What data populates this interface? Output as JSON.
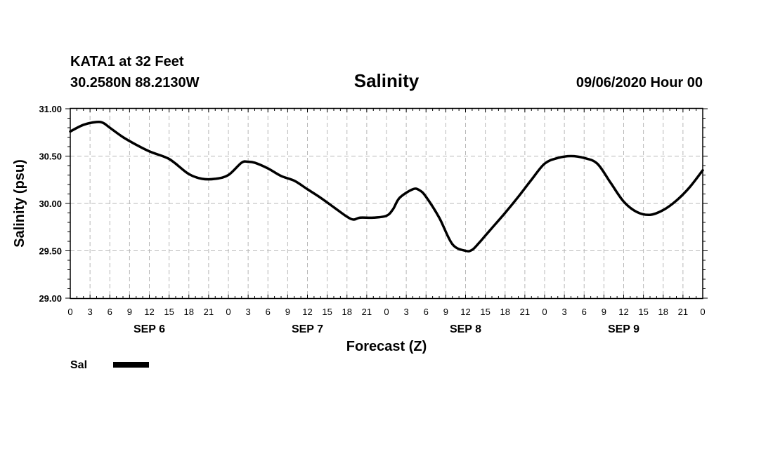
{
  "header": {
    "station": "KATA1 at 32 Feet",
    "location": "30.2580N 88.2130W",
    "title": "Salinity",
    "run": "09/06/2020 Hour 00"
  },
  "legend": {
    "label": "Sal",
    "color": "#000000"
  },
  "chart_data": {
    "type": "line",
    "title": "Salinity",
    "xlabel": "Forecast (Z)",
    "ylabel": "Salinity (psu)",
    "ylim": [
      29.0,
      31.0
    ],
    "xlim": [
      0,
      96
    ],
    "x_units": "hours since 09/06/2020 00Z",
    "yticks": [
      "29.00",
      "29.50",
      "30.00",
      "30.50",
      "31.00"
    ],
    "xtick_labels": [
      "0",
      "3",
      "6",
      "9",
      "12",
      "15",
      "18",
      "21",
      "0",
      "3",
      "6",
      "9",
      "12",
      "15",
      "18",
      "21",
      "0",
      "3",
      "6",
      "9",
      "12",
      "15",
      "18",
      "21",
      "0",
      "3",
      "6",
      "9",
      "12",
      "15",
      "18",
      "21",
      "0"
    ],
    "day_labels": [
      "SEP 6",
      "SEP 7",
      "SEP 8",
      "SEP 9"
    ],
    "grid": true,
    "legend_position": "bottom-left",
    "series": [
      {
        "name": "Sal",
        "color": "#000000",
        "x": [
          0,
          2,
          4,
          5,
          6,
          8,
          10,
          12,
          14,
          15,
          16,
          18,
          20,
          22,
          24,
          26,
          27,
          28,
          30,
          32,
          34,
          36,
          38,
          40,
          42,
          43,
          44,
          46,
          48,
          49,
          50,
          52,
          53,
          54,
          56,
          58,
          60,
          61,
          62,
          63,
          64,
          66,
          68,
          70,
          72,
          74,
          76,
          78,
          80,
          82,
          84,
          86,
          88,
          90,
          92,
          94,
          96
        ],
        "y": [
          30.76,
          30.83,
          30.86,
          30.85,
          30.8,
          30.7,
          30.62,
          30.55,
          30.5,
          30.47,
          30.42,
          30.31,
          30.26,
          30.26,
          30.3,
          30.43,
          30.44,
          30.43,
          30.37,
          30.29,
          30.24,
          30.15,
          30.06,
          29.96,
          29.86,
          29.83,
          29.85,
          29.85,
          29.87,
          29.94,
          30.06,
          30.15,
          30.14,
          30.07,
          29.85,
          29.57,
          29.5,
          29.51,
          29.58,
          29.66,
          29.74,
          29.9,
          30.07,
          30.25,
          30.42,
          30.48,
          30.5,
          30.48,
          30.42,
          30.22,
          30.02,
          29.91,
          29.88,
          29.93,
          30.03,
          30.17,
          30.35
        ]
      }
    ]
  }
}
